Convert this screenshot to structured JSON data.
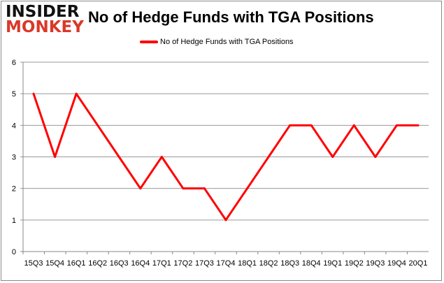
{
  "logo": {
    "line1": "INSIDER",
    "line2": "MONKEY"
  },
  "chart_data": {
    "type": "line",
    "title": "No of Hedge Funds with TGA Positions",
    "categories": [
      "15Q3",
      "15Q4",
      "16Q1",
      "16Q2",
      "16Q3",
      "16Q4",
      "17Q1",
      "17Q2",
      "17Q3",
      "17Q4",
      "18Q1",
      "18Q2",
      "18Q3",
      "18Q4",
      "19Q1",
      "19Q2",
      "19Q3",
      "19Q4",
      "20Q1"
    ],
    "series": [
      {
        "name": "No of Hedge Funds with TGA Positions",
        "values": [
          5,
          3,
          5,
          4,
          3,
          2,
          3,
          2,
          2,
          1,
          2,
          3,
          4,
          4,
          3,
          4,
          3,
          4,
          4
        ],
        "color": "#ff0000"
      }
    ],
    "ylim": [
      0,
      6
    ],
    "yticks": [
      0,
      1,
      2,
      3,
      4,
      5,
      6
    ],
    "grid": true,
    "legend": "top-center"
  }
}
